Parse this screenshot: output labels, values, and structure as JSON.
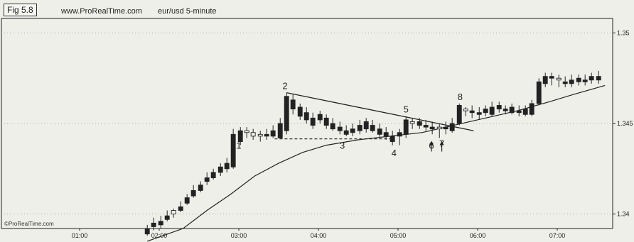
{
  "header": {
    "fig_label": "Fig 5.8",
    "site": "www.ProRealTime.com",
    "instrument": "eur/usd  5-minute"
  },
  "watermark": "©ProRealTime.com",
  "colors": {
    "background": "#efefea",
    "ink": "#222222",
    "grid": "#9a9a9a"
  },
  "chart_data": {
    "type": "candlestick",
    "x_ticks": [
      "01:00",
      "02:00",
      "03:00",
      "04:00",
      "05:00",
      "06:00",
      "07:00"
    ],
    "y_ticks": [
      {
        "value": 1.34,
        "label": "1.34"
      },
      {
        "value": 1.345,
        "label": "1.345"
      },
      {
        "value": 1.35,
        "label": "1.35"
      }
    ],
    "ylim": [
      1.3392,
      1.3508
    ],
    "xlim": [
      0.0,
      7.1
    ],
    "grid": true,
    "candles": [
      [
        1.85,
        1.3392,
        1.3394,
        1.3388,
        1.3389
      ],
      [
        1.93,
        1.3395,
        1.3398,
        1.3391,
        1.3393
      ],
      [
        2.02,
        1.3396,
        1.3399,
        1.3392,
        1.3394
      ],
      [
        2.1,
        1.3399,
        1.3402,
        1.3396,
        1.3397
      ],
      [
        2.18,
        1.34,
        1.3403,
        1.3398,
        1.3402
      ],
      [
        2.27,
        1.3404,
        1.3407,
        1.3401,
        1.3402
      ],
      [
        2.35,
        1.3409,
        1.3411,
        1.3405,
        1.3406
      ],
      [
        2.43,
        1.3413,
        1.3416,
        1.3409,
        1.341
      ],
      [
        2.52,
        1.3416,
        1.3418,
        1.3412,
        1.3413
      ],
      [
        2.6,
        1.342,
        1.3423,
        1.3416,
        1.3418
      ],
      [
        2.68,
        1.3423,
        1.3425,
        1.3419,
        1.342
      ],
      [
        2.77,
        1.3426,
        1.3428,
        1.3421,
        1.3423
      ],
      [
        2.85,
        1.3428,
        1.3431,
        1.3423,
        1.3425
      ],
      [
        2.93,
        1.3444,
        1.3447,
        1.3425,
        1.3426
      ],
      [
        3.02,
        1.3446,
        1.3448,
        1.3438,
        1.344
      ],
      [
        3.1,
        1.3445,
        1.3448,
        1.3442,
        1.3446
      ],
      [
        3.18,
        1.3443,
        1.3447,
        1.3441,
        1.3445
      ],
      [
        3.27,
        1.3443,
        1.3446,
        1.344,
        1.3444
      ],
      [
        3.35,
        1.3444,
        1.3447,
        1.3441,
        1.3443
      ],
      [
        3.43,
        1.3446,
        1.3449,
        1.3442,
        1.3443
      ],
      [
        3.52,
        1.345,
        1.3453,
        1.3442,
        1.3442
      ],
      [
        3.6,
        1.3465,
        1.3467,
        1.3444,
        1.3446
      ],
      [
        3.68,
        1.3463,
        1.3466,
        1.3455,
        1.3458
      ],
      [
        3.77,
        1.3459,
        1.3461,
        1.3452,
        1.3454
      ],
      [
        3.85,
        1.3456,
        1.3459,
        1.345,
        1.3452
      ],
      [
        3.93,
        1.3453,
        1.3456,
        1.3447,
        1.3449
      ],
      [
        4.02,
        1.3455,
        1.3457,
        1.345,
        1.3452
      ],
      [
        4.1,
        1.3453,
        1.3455,
        1.3447,
        1.3449
      ],
      [
        4.18,
        1.345,
        1.3453,
        1.3446,
        1.3447
      ],
      [
        4.27,
        1.3448,
        1.3451,
        1.3444,
        1.3446
      ],
      [
        4.35,
        1.3446,
        1.3449,
        1.3443,
        1.3444
      ],
      [
        4.43,
        1.3447,
        1.345,
        1.3443,
        1.3445
      ],
      [
        4.52,
        1.3449,
        1.3452,
        1.3444,
        1.3446
      ],
      [
        4.6,
        1.3451,
        1.3453,
        1.3445,
        1.3447
      ],
      [
        4.68,
        1.3449,
        1.3452,
        1.3445,
        1.3446
      ],
      [
        4.77,
        1.3447,
        1.345,
        1.3442,
        1.3444
      ],
      [
        4.85,
        1.3445,
        1.3448,
        1.3441,
        1.3443
      ],
      [
        4.93,
        1.3443,
        1.3446,
        1.3438,
        1.344
      ],
      [
        5.02,
        1.3445,
        1.3447,
        1.3438,
        1.3443
      ],
      [
        5.1,
        1.3452,
        1.3454,
        1.3442,
        1.3444
      ],
      [
        5.18,
        1.345,
        1.3453,
        1.3447,
        1.3451
      ],
      [
        5.27,
        1.3451,
        1.3453,
        1.3447,
        1.3449
      ],
      [
        5.35,
        1.3449,
        1.3452,
        1.3446,
        1.3448
      ],
      [
        5.43,
        1.3448,
        1.3451,
        1.3444,
        1.3447
      ],
      [
        5.52,
        1.3447,
        1.345,
        1.3442,
        1.3448
      ],
      [
        5.6,
        1.3448,
        1.3451,
        1.3444,
        1.3447
      ],
      [
        5.68,
        1.345,
        1.3453,
        1.3445,
        1.3446
      ],
      [
        5.77,
        1.346,
        1.3461,
        1.3449,
        1.345
      ],
      [
        5.85,
        1.3457,
        1.3459,
        1.3454,
        1.3458
      ],
      [
        5.93,
        1.3457,
        1.346,
        1.3453,
        1.3456
      ],
      [
        6.02,
        1.3456,
        1.3459,
        1.3452,
        1.3455
      ],
      [
        6.1,
        1.3458,
        1.346,
        1.3454,
        1.3456
      ],
      [
        6.18,
        1.3459,
        1.3462,
        1.3454,
        1.3455
      ],
      [
        6.27,
        1.346,
        1.3462,
        1.3456,
        1.3458
      ],
      [
        6.35,
        1.3458,
        1.346,
        1.3455,
        1.3457
      ],
      [
        6.43,
        1.3459,
        1.3461,
        1.3455,
        1.3456
      ],
      [
        6.52,
        1.3457,
        1.346,
        1.3454,
        1.3456
      ],
      [
        6.6,
        1.3458,
        1.346,
        1.3454,
        1.3455
      ],
      [
        6.68,
        1.3461,
        1.3463,
        1.3454,
        1.3455
      ],
      [
        6.77,
        1.3473,
        1.3475,
        1.346,
        1.3461
      ],
      [
        6.85,
        1.3476,
        1.3478,
        1.347,
        1.3472
      ],
      [
        6.93,
        1.3476,
        1.3478,
        1.3471,
        1.3475
      ],
      [
        7.02,
        1.3474,
        1.3477,
        1.347,
        1.3475
      ],
      [
        7.1,
        1.3473,
        1.3476,
        1.347,
        1.3472
      ],
      [
        7.18,
        1.3474,
        1.3477,
        1.347,
        1.3472
      ],
      [
        7.27,
        1.3475,
        1.3477,
        1.3471,
        1.3473
      ],
      [
        7.35,
        1.3474,
        1.3477,
        1.3471,
        1.3473
      ],
      [
        7.43,
        1.3476,
        1.3478,
        1.3472,
        1.3474
      ],
      [
        7.52,
        1.3476,
        1.3479,
        1.3472,
        1.3474
      ]
    ],
    "moving_average": [
      [
        1.85,
        1.3385
      ],
      [
        2.3,
        1.3392
      ],
      [
        2.6,
        1.3402
      ],
      [
        2.9,
        1.3411
      ],
      [
        3.2,
        1.3421
      ],
      [
        3.5,
        1.3428
      ],
      [
        3.8,
        1.3434
      ],
      [
        4.1,
        1.3438
      ],
      [
        4.5,
        1.3441
      ],
      [
        4.9,
        1.3443
      ],
      [
        5.3,
        1.3445
      ],
      [
        5.7,
        1.3449
      ],
      [
        6.1,
        1.3453
      ],
      [
        6.5,
        1.3457
      ],
      [
        6.9,
        1.3462
      ],
      [
        7.2,
        1.3466
      ],
      [
        7.6,
        1.3471
      ]
    ],
    "trendline": [
      [
        3.6,
        1.3467
      ],
      [
        5.95,
        1.3446
      ]
    ],
    "support_line": [
      [
        3.45,
        1.34415
      ],
      [
        4.95,
        1.34415
      ]
    ],
    "arrows": [
      [
        5.42,
        1.344
      ],
      [
        5.55,
        1.344
      ]
    ],
    "annotations": [
      {
        "label": "1",
        "x": 3.0,
        "y": 1.3436
      },
      {
        "label": "2",
        "x": 3.58,
        "y": 1.3469
      },
      {
        "label": "3",
        "x": 4.3,
        "y": 1.3436
      },
      {
        "label": "4",
        "x": 4.95,
        "y": 1.3432
      },
      {
        "label": "5",
        "x": 5.1,
        "y": 1.3456
      },
      {
        "label": "6",
        "x": 5.42,
        "y": 1.3436
      },
      {
        "label": "7",
        "x": 5.55,
        "y": 1.3437
      },
      {
        "label": "8",
        "x": 5.78,
        "y": 1.3463
      }
    ]
  }
}
